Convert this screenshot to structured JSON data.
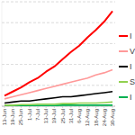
{
  "chart_data": {
    "type": "line",
    "categories": [
      "13-Jun",
      "19-Jun",
      "25-Jun",
      "1-Jul",
      "7-Jul",
      "13-Jul",
      "19-Jul",
      "25-Jul",
      "31-Jul",
      "6-Aug",
      "12-Aug",
      "18-Aug",
      "24-Aug",
      "30-Aug"
    ],
    "series": [
      {
        "name": "I",
        "color": "#ff0000",
        "values": [
          10,
          14,
          18,
          23,
          27,
          33,
          38,
          45,
          52,
          58,
          66,
          73,
          81,
          91
        ]
      },
      {
        "name": "V",
        "color": "#ff9999",
        "values": [
          7,
          9,
          11,
          13,
          15,
          17,
          19,
          21,
          23,
          25,
          27,
          30,
          32,
          35
        ]
      },
      {
        "name": "I",
        "color": "#000000",
        "values": [
          3,
          4,
          5,
          5,
          6,
          7,
          8,
          9,
          9,
          10,
          11,
          12,
          13,
          14
        ]
      },
      {
        "name": "S",
        "color": "#92d050",
        "values": [
          1,
          1,
          1.5,
          1.5,
          2,
          2,
          2,
          2.5,
          2.5,
          3,
          3,
          3,
          3.5,
          4
        ]
      },
      {
        "name": "I",
        "color": "#00b050",
        "values": [
          0.5,
          0.5,
          0.5,
          0.5,
          0.5,
          0.5,
          0.5,
          1,
          1,
          1,
          1,
          1,
          1,
          1
        ]
      }
    ],
    "ylim": [
      0,
      100
    ],
    "yticks": [
      0,
      20,
      40,
      60,
      80,
      100
    ],
    "grid": true,
    "legend": "right",
    "tick_labels": "x"
  }
}
